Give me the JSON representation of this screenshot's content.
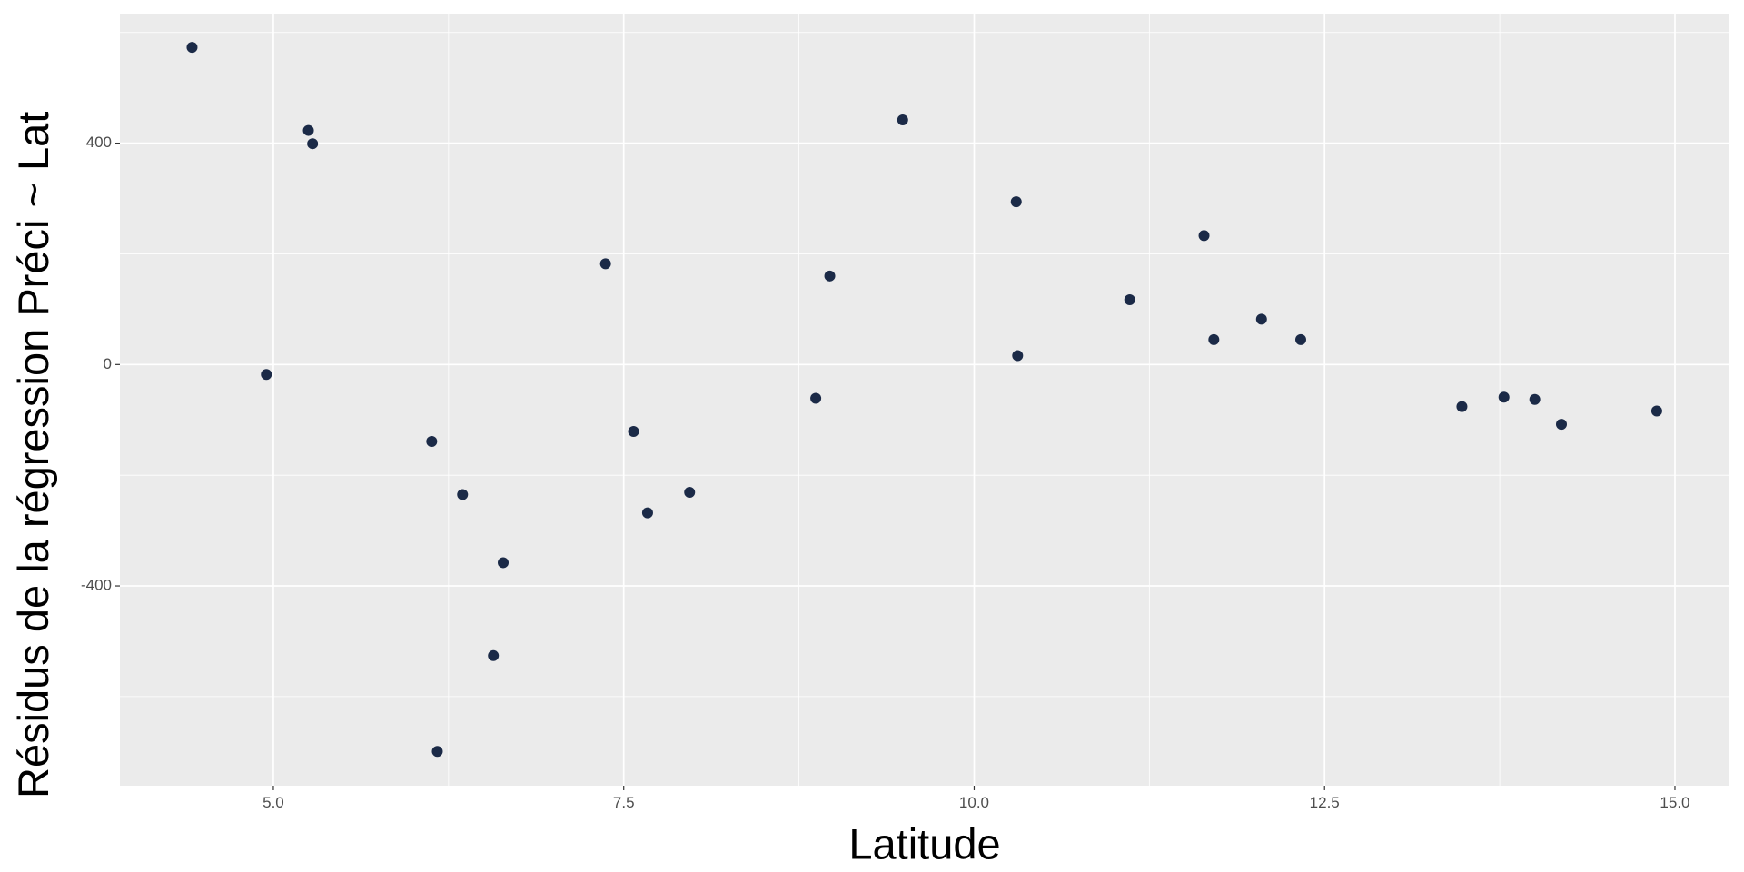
{
  "chart_data": {
    "type": "scatter",
    "x_label": "Latitude",
    "y_label": "Résidus de la régression Préci ~ Lat",
    "x": [
      4.42,
      4.95,
      5.25,
      5.28,
      6.13,
      6.17,
      6.35,
      6.57,
      6.64,
      7.37,
      7.57,
      7.67,
      7.97,
      8.87,
      8.97,
      9.49,
      10.3,
      10.31,
      11.11,
      11.64,
      11.71,
      12.05,
      12.33,
      13.48,
      13.78,
      14.0,
      14.19,
      14.87
    ],
    "values": [
      573,
      -18,
      423,
      399,
      -139,
      -699,
      -235,
      -526,
      -358,
      182,
      -121,
      -268,
      -231,
      -61,
      160,
      442,
      294,
      16,
      117,
      233,
      45,
      82,
      45,
      -76,
      -59,
      -63,
      -108,
      -84
    ],
    "color": "#1b2a47",
    "xlim": [
      3.905,
      15.389
    ],
    "ylim": [
      -761,
      634
    ],
    "xticks": [
      {
        "value": 5,
        "label": "5.0"
      },
      {
        "value": 7.5,
        "label": "7.5"
      },
      {
        "value": 10,
        "label": "10.0"
      },
      {
        "value": 12.5,
        "label": "12.5"
      },
      {
        "value": 15,
        "label": "15.0"
      }
    ],
    "yticks": [
      -400,
      0,
      400
    ],
    "x_minor_grid": [
      6.25,
      8.75,
      11.25,
      13.75
    ],
    "y_minor_grid": [
      -600,
      -200,
      200,
      600
    ],
    "grid": true,
    "panel_color": "#ebebeb"
  }
}
